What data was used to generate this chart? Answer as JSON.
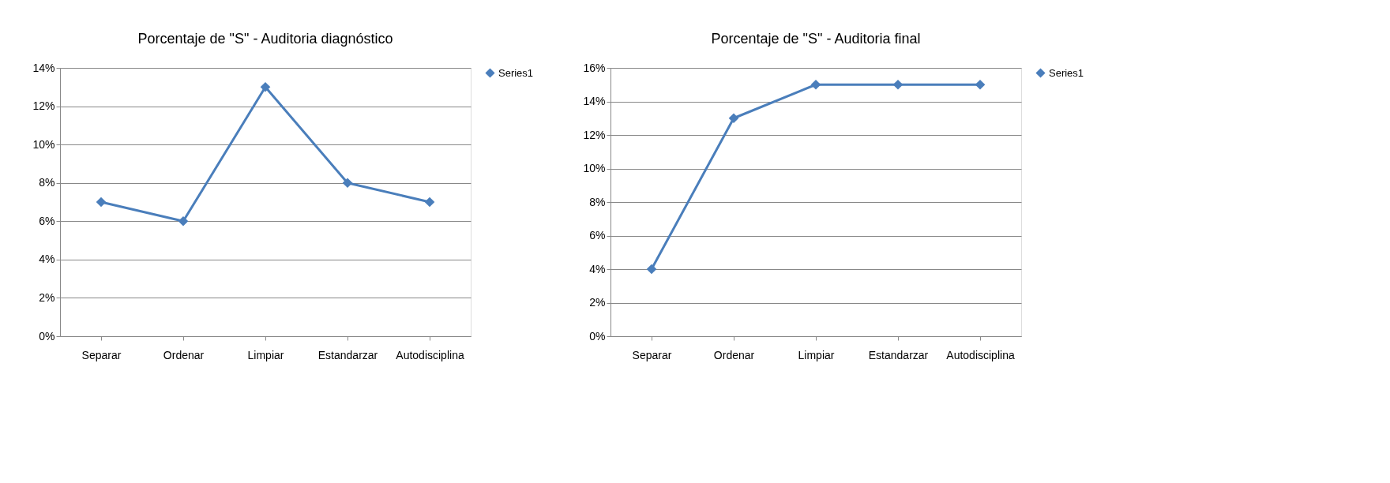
{
  "chart_data": [
    {
      "type": "line",
      "title": "Porcentaje de \"S\" - Auditoria diagnóstico",
      "categories": [
        "Separar",
        "Ordenar",
        "Limpiar",
        "Estandarzar",
        "Autodisciplina"
      ],
      "series": [
        {
          "name": "Series1",
          "color": "#4a7ebb",
          "values": [
            7,
            6,
            13,
            8,
            7
          ]
        }
      ],
      "ylim": [
        0,
        14
      ],
      "yticks": [
        {
          "value": 0,
          "label": "0%"
        },
        {
          "value": 2,
          "label": "2%"
        },
        {
          "value": 4,
          "label": "4%"
        },
        {
          "value": 6,
          "label": "6%"
        },
        {
          "value": 8,
          "label": "8%"
        },
        {
          "value": 10,
          "label": "10%"
        },
        {
          "value": 12,
          "label": "12%"
        },
        {
          "value": 14,
          "label": "14%"
        }
      ],
      "grid": "y",
      "legend": "right",
      "marker": "diamond",
      "line_style": "solid"
    },
    {
      "type": "line",
      "title": "Porcentaje de \"S\" - Auditoria final",
      "categories": [
        "Separar",
        "Ordenar",
        "Limpiar",
        "Estandarzar",
        "Autodisciplina"
      ],
      "series": [
        {
          "name": "Series1",
          "color": "#4a7ebb",
          "values": [
            4,
            13,
            15,
            15,
            15
          ]
        }
      ],
      "ylim": [
        0,
        16
      ],
      "yticks": [
        {
          "value": 0,
          "label": "0%"
        },
        {
          "value": 2,
          "label": "2%"
        },
        {
          "value": 4,
          "label": "4%"
        },
        {
          "value": 6,
          "label": "6%"
        },
        {
          "value": 8,
          "label": "8%"
        },
        {
          "value": 10,
          "label": "10%"
        },
        {
          "value": 12,
          "label": "12%"
        },
        {
          "value": 14,
          "label": "14%"
        },
        {
          "value": 16,
          "label": "16%"
        }
      ],
      "grid": "y",
      "legend": "right",
      "marker": "diamond",
      "line_style": "solid"
    }
  ]
}
